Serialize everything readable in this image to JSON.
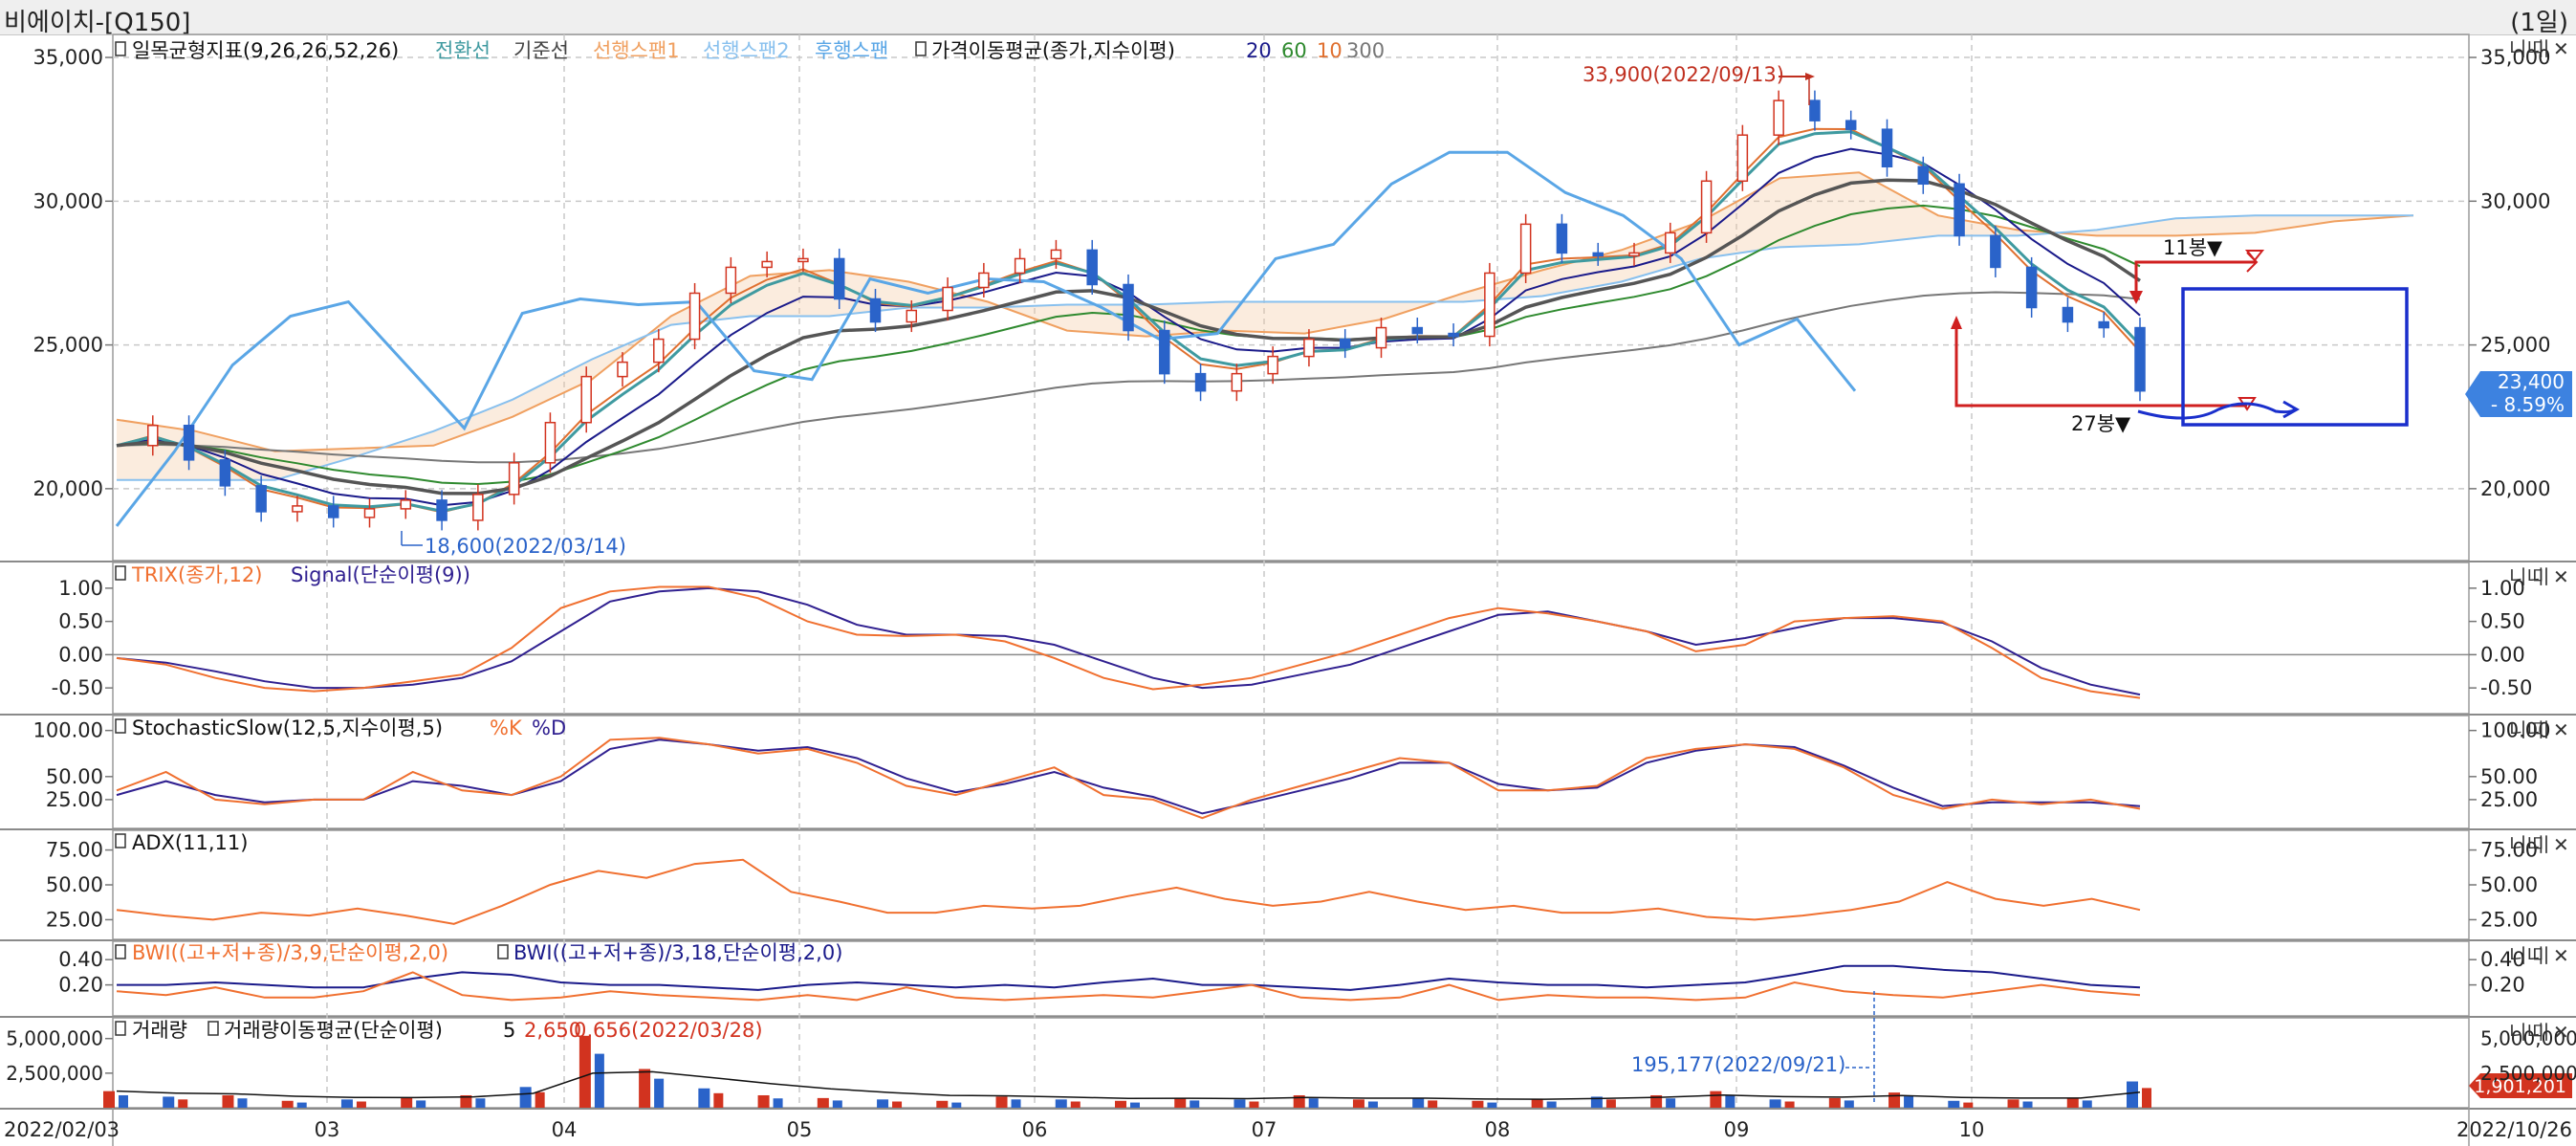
{
  "window": {
    "title": "비에이치-[Q150]",
    "period": "(1일)"
  },
  "x_axis": {
    "start_date": "2022/02/03",
    "end_date": "2022/10/26",
    "month_labels": [
      "03",
      "04",
      "05",
      "06",
      "07",
      "08",
      "09",
      "10"
    ]
  },
  "price_panel": {
    "legend_ichimoku": "일목균형지표(9,26,26,52,26)",
    "legend_ichimoku_lines": [
      "전환선",
      "기준선",
      "선행스팬1",
      "선행스팬2",
      "후행스팬"
    ],
    "legend_ma": "가격이동평균(종가,지수이평)",
    "legend_ma_periods": [
      "20",
      "60",
      "10",
      "300"
    ],
    "y_ticks": [
      "35,000",
      "30,000",
      "25,000",
      "20,000"
    ],
    "high_annotation": "33,900(2022/09/13)",
    "low_annotation": "18,600(2022/03/14)",
    "count_upper": "11봉▼",
    "count_lower": "27봉▼",
    "current_price": "23,400",
    "current_change": "- 8.59%",
    "corner_buttons": [
      "니니",
      "미",
      "✕"
    ]
  },
  "trix_panel": {
    "legend_trix": "TRIX(종가,12)",
    "legend_signal": "Signal(단순이평(9))",
    "y_ticks": [
      "1.00",
      "0.50",
      "0.00",
      "-0.50"
    ]
  },
  "stoch_panel": {
    "legend": "StochasticSlow(12,5,지수이평,5)",
    "legend_k": "%K",
    "legend_d": "%D",
    "y_ticks": [
      "100.00",
      "50.00",
      "25.00"
    ]
  },
  "adx_panel": {
    "legend": "ADX(11,11)",
    "y_ticks": [
      "75.00",
      "50.00",
      "25.00"
    ]
  },
  "bwi_panel": {
    "legend_1": "BWI((고+저+종)/3,9,단순이평,2,0)",
    "legend_2": "BWI((고+저+종)/3,18,단순이평,2,0)",
    "y_ticks": [
      "0.40",
      "0.20"
    ]
  },
  "volume_panel": {
    "legend_vol": "거래량",
    "legend_vma": "거래량이동평균(단순이평)",
    "legend_vma_period": "5",
    "max_annotation": "2,650",
    "max_annotation_rest": "0,656(2022/03/28)",
    "point_annotation": "195,177(2022/09/21)",
    "y_ticks": [
      "5,000,000",
      "2,500,000"
    ],
    "current_volume": "1,901,201"
  },
  "colors": {
    "up_candle": "#d2331f",
    "down_candle": "#2a63c9",
    "conversion": "#3f9aa0",
    "base": "#555555",
    "span1": "#f0a060",
    "span2": "#88c0ee",
    "lagging": "#5aa6e6",
    "ma20": "#1a1a8a",
    "ma60": "#2f8a2f",
    "ma10": "#e07030",
    "ma300": "#777777",
    "trix": "#f07030",
    "signal": "#302090"
  },
  "chart_data": {
    "type": "line",
    "title": "비에이치-[Q150]",
    "x_start": "2022/02/03",
    "x_end": "2022/10/26",
    "price_range": [
      17500,
      35800
    ],
    "price_close": [
      21500,
      22200,
      21000,
      20100,
      19200,
      19400,
      19000,
      19300,
      19600,
      18900,
      19800,
      20900,
      22300,
      23900,
      24400,
      25200,
      26800,
      27700,
      27900,
      28000,
      26600,
      25800,
      26200,
      27000,
      27500,
      28000,
      28300,
      27100,
      25500,
      24000,
      23400,
      24000,
      24600,
      25200,
      24900,
      25600,
      25400,
      25300,
      27500,
      29200,
      28200,
      28100,
      28200,
      28900,
      30700,
      32300,
      33500,
      32800,
      32500,
      31200,
      30600,
      28800,
      27700,
      26300,
      25800,
      25600,
      23400
    ],
    "lagging_span": [
      18700,
      21300,
      24300,
      26000,
      26500,
      24300,
      22100,
      26100,
      26600,
      26400,
      26500,
      24100,
      23800,
      27300,
      26800,
      27300,
      27200,
      26300,
      25200,
      25400,
      28000,
      28500,
      30600,
      31700,
      31700,
      30300,
      29500,
      28000,
      25000,
      25900,
      23400
    ],
    "span1_cloud": [
      22400,
      22000,
      21300,
      21400,
      21500,
      22500,
      23800,
      26000,
      27400,
      27600,
      27200,
      26500,
      25500,
      25300,
      25500,
      25400,
      25900,
      26800,
      27600,
      28300,
      29300,
      30800,
      31000,
      29500,
      29000,
      28800,
      28800,
      28900,
      29300,
      29500
    ],
    "span2_cloud": [
      20300,
      20300,
      20300,
      21100,
      22000,
      23100,
      24500,
      25700,
      26000,
      26000,
      26300,
      26300,
      26400,
      26400,
      26500,
      26500,
      26500,
      26500,
      26700,
      27200,
      28000,
      28400,
      28500,
      28800,
      28800,
      29000,
      29400,
      29500,
      29500,
      29500
    ],
    "trix_range": [
      -0.8,
      1.3
    ],
    "trix": [
      -0.05,
      -0.15,
      -0.35,
      -0.5,
      -0.55,
      -0.5,
      -0.4,
      -0.3,
      0.1,
      0.7,
      0.95,
      1.02,
      1.02,
      0.85,
      0.5,
      0.3,
      0.28,
      0.3,
      0.2,
      -0.05,
      -0.35,
      -0.52,
      -0.45,
      -0.35,
      -0.15,
      0.05,
      0.3,
      0.55,
      0.7,
      0.62,
      0.5,
      0.35,
      0.05,
      0.15,
      0.5,
      0.55,
      0.58,
      0.5,
      0.1,
      -0.35,
      -0.55,
      -0.65
    ],
    "signal": [
      -0.05,
      -0.12,
      -0.25,
      -0.4,
      -0.5,
      -0.5,
      -0.45,
      -0.35,
      -0.1,
      0.35,
      0.8,
      0.95,
      1.0,
      0.95,
      0.75,
      0.45,
      0.3,
      0.3,
      0.28,
      0.15,
      -0.1,
      -0.35,
      -0.5,
      -0.45,
      -0.3,
      -0.15,
      0.1,
      0.35,
      0.6,
      0.65,
      0.5,
      0.35,
      0.15,
      0.25,
      0.4,
      0.55,
      0.55,
      0.48,
      0.2,
      -0.2,
      -0.45,
      -0.6
    ],
    "stoch_k": [
      35,
      55,
      25,
      20,
      25,
      25,
      55,
      35,
      30,
      50,
      90,
      92,
      85,
      75,
      80,
      65,
      40,
      30,
      45,
      60,
      30,
      25,
      5,
      25,
      40,
      55,
      70,
      65,
      35,
      35,
      40,
      70,
      80,
      85,
      80,
      60,
      30,
      15,
      25,
      20,
      25,
      15
    ],
    "stoch_d": [
      30,
      45,
      30,
      22,
      25,
      25,
      45,
      40,
      30,
      45,
      80,
      90,
      85,
      78,
      82,
      70,
      48,
      33,
      42,
      55,
      38,
      28,
      10,
      22,
      35,
      48,
      65,
      65,
      42,
      35,
      38,
      65,
      78,
      85,
      82,
      62,
      38,
      18,
      22,
      22,
      22,
      18
    ],
    "adx": [
      32,
      28,
      25,
      30,
      28,
      33,
      28,
      22,
      35,
      50,
      60,
      55,
      65,
      68,
      45,
      38,
      30,
      30,
      35,
      33,
      35,
      42,
      48,
      40,
      35,
      38,
      45,
      38,
      32,
      35,
      30,
      30,
      33,
      27,
      25,
      28,
      32,
      38,
      52,
      40,
      35,
      40,
      32
    ],
    "bwi_9": [
      0.15,
      0.12,
      0.18,
      0.1,
      0.1,
      0.15,
      0.3,
      0.12,
      0.08,
      0.1,
      0.15,
      0.12,
      0.1,
      0.08,
      0.12,
      0.08,
      0.18,
      0.1,
      0.08,
      0.1,
      0.12,
      0.1,
      0.15,
      0.2,
      0.1,
      0.08,
      0.1,
      0.2,
      0.08,
      0.12,
      0.1,
      0.1,
      0.08,
      0.1,
      0.22,
      0.15,
      0.12,
      0.1,
      0.15,
      0.2,
      0.15,
      0.12
    ],
    "bwi_18": [
      0.2,
      0.2,
      0.22,
      0.2,
      0.18,
      0.18,
      0.25,
      0.3,
      0.28,
      0.22,
      0.2,
      0.2,
      0.18,
      0.16,
      0.2,
      0.22,
      0.2,
      0.18,
      0.2,
      0.18,
      0.22,
      0.25,
      0.2,
      0.2,
      0.18,
      0.16,
      0.2,
      0.25,
      0.22,
      0.2,
      0.2,
      0.18,
      0.2,
      0.22,
      0.28,
      0.35,
      0.35,
      0.32,
      0.3,
      0.25,
      0.2,
      0.18
    ],
    "volume_max": 6500000,
    "volume": [
      1200000,
      800000,
      900000,
      500000,
      600000,
      700000,
      900000,
      1500000,
      5200000,
      2800000,
      1400000,
      900000,
      700000,
      600000,
      500000,
      800000,
      600000,
      500000,
      700000,
      600000,
      900000,
      600000,
      700000,
      500000,
      600000,
      800000,
      900000,
      1200000,
      600000,
      700000,
      1100000,
      500000,
      600000,
      700000,
      1900000
    ]
  }
}
